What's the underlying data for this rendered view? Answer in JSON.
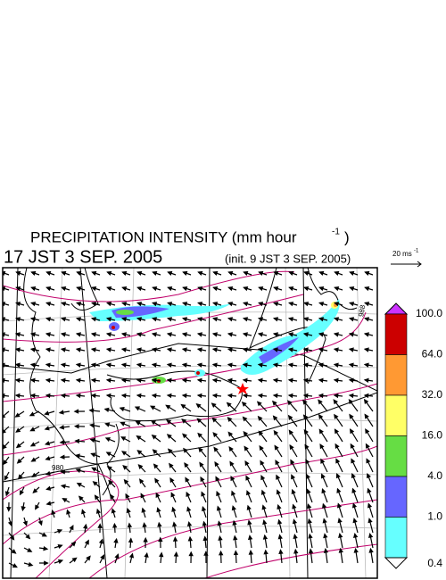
{
  "header": {
    "title": "PRECIPITATION INTENSITY (mm hour",
    "title_exponent": "-1",
    "title_close": ")",
    "valid_time": "17 JST 3 SEP. 2005",
    "init_time": "(init. 9 JST 3 SEP. 2005)"
  },
  "wind_scale": {
    "label": "20 ms",
    "exponent": "-1"
  },
  "colorbar": {
    "labels": [
      "100.0",
      "64.0",
      "32.0",
      "16.0",
      "4.0",
      "1.0",
      "0.4"
    ],
    "colors": [
      "#cc0000",
      "#ff9933",
      "#ffff66",
      "#66dd44",
      "#6666ff",
      "#66ffff"
    ],
    "over_color": "#cc33ff",
    "under_color": "#ffffff"
  },
  "map": {
    "contour_labels": [
      "980",
      "988"
    ]
  }
}
